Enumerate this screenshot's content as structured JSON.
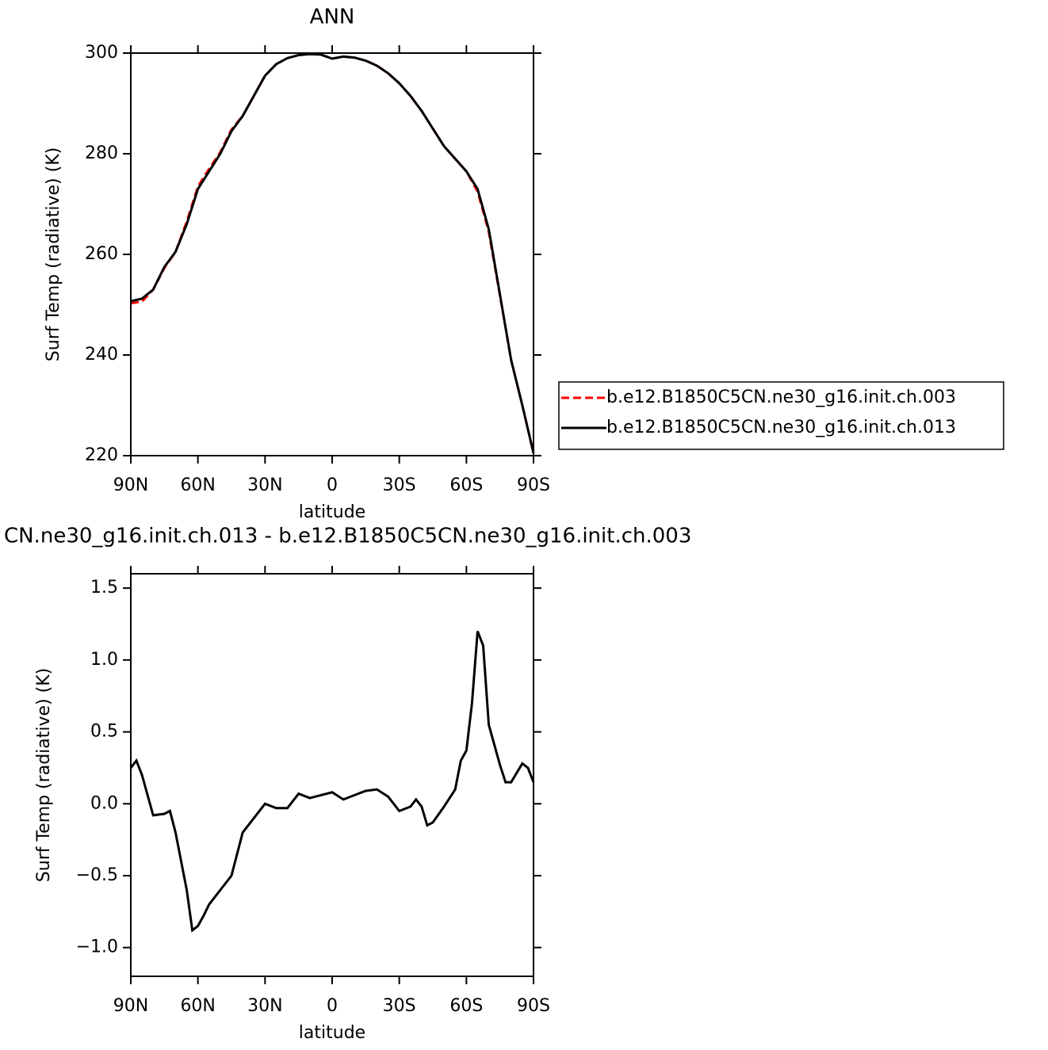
{
  "chart_data": [
    {
      "type": "line",
      "title": "ANN",
      "xlabel": "latitude",
      "ylabel": "Surf Temp (radiative) (K)",
      "x": [
        90,
        85,
        80,
        75,
        70,
        65,
        60,
        55,
        50,
        45,
        40,
        35,
        30,
        25,
        20,
        15,
        10,
        5,
        0,
        -5,
        -10,
        -15,
        -20,
        -25,
        -30,
        -35,
        -40,
        -45,
        -50,
        -55,
        -60,
        -65,
        -70,
        -75,
        -80,
        -85,
        -90
      ],
      "series": [
        {
          "name": "b.e12.B1850C5CN.ne30_g16.init.ch.003",
          "color": "#ff0000",
          "dash": "dashed",
          "values": [
            250.3,
            250.6,
            253,
            257.3,
            260.5,
            266.5,
            273.5,
            277,
            280.3,
            284.8,
            287.5,
            291.5,
            295.5,
            297.8,
            299,
            299.6,
            299.8,
            299.7,
            298.9,
            299.3,
            299.1,
            298.5,
            297.5,
            296,
            294,
            291.5,
            288.5,
            285,
            281.5,
            279,
            276.5,
            272.5,
            264.5,
            251.8,
            239,
            230,
            220.5
          ]
        },
        {
          "name": "b.e12.B1850C5CN.ne30_g16.init.ch.013",
          "color": "#000000",
          "dash": "solid",
          "values": [
            250.7,
            251.2,
            253,
            257.5,
            260.5,
            266,
            273,
            276.5,
            280,
            284.5,
            287.5,
            291.5,
            295.5,
            297.8,
            299,
            299.6,
            299.8,
            299.7,
            298.9,
            299.3,
            299.1,
            298.5,
            297.5,
            296,
            294,
            291.5,
            288.5,
            285,
            281.5,
            279,
            276.5,
            273,
            265,
            252,
            239,
            230,
            220.5
          ]
        }
      ],
      "xlim": [
        90,
        -90
      ],
      "xticks": [
        {
          "value": 90,
          "label": "90N"
        },
        {
          "value": 60,
          "label": "60N"
        },
        {
          "value": 30,
          "label": "30N"
        },
        0,
        {
          "value": -30,
          "label": "30S"
        },
        {
          "value": -60,
          "label": "60S"
        },
        {
          "value": -90,
          "label": "90S"
        }
      ],
      "ylim": [
        220,
        300
      ],
      "yticks": [
        220,
        240,
        260,
        280,
        300
      ],
      "legend": "outside right"
    },
    {
      "type": "line",
      "title": "CN.ne30_g16.init.ch.013 - b.e12.B1850C5CN.ne30_g16.init.ch.003",
      "xlabel": "latitude",
      "ylabel": "Surf Temp (radiative) (K)",
      "x": [
        90,
        87.5,
        85,
        80,
        75,
        72.5,
        70,
        65,
        62.5,
        60,
        57.5,
        55,
        50,
        45,
        40,
        35,
        30,
        25,
        20,
        15,
        10,
        5,
        0,
        -5,
        -10,
        -15,
        -20,
        -25,
        -30,
        -35,
        -37.5,
        -40,
        -42.5,
        -45,
        -50,
        -55,
        -57.5,
        -60,
        -62.5,
        -65,
        -67.5,
        -70,
        -75,
        -77.5,
        -80,
        -85,
        -87.5,
        -90
      ],
      "series": [
        {
          "color": "#000000",
          "dash": "solid",
          "values": [
            0.25,
            0.3,
            0.2,
            -0.08,
            -0.07,
            -0.05,
            -0.2,
            -0.6,
            -0.88,
            -0.85,
            -0.78,
            -0.7,
            -0.6,
            -0.5,
            -0.2,
            -0.1,
            0,
            -0.03,
            -0.03,
            0.07,
            0.04,
            0.06,
            0.08,
            0.03,
            0.06,
            0.09,
            0.1,
            0.05,
            -0.05,
            -0.02,
            0.03,
            -0.02,
            -0.15,
            -0.13,
            -0.02,
            0.1,
            0.3,
            0.37,
            0.7,
            1.2,
            1.1,
            0.55,
            0.27,
            0.15,
            0.15,
            0.28,
            0.25,
            0.15
          ]
        }
      ],
      "xlim": [
        90,
        -90
      ],
      "xticks": [
        {
          "value": 90,
          "label": "90N"
        },
        {
          "value": 60,
          "label": "60N"
        },
        {
          "value": 30,
          "label": "30N"
        },
        0,
        {
          "value": -30,
          "label": "30S"
        },
        {
          "value": -60,
          "label": "60S"
        },
        {
          "value": -90,
          "label": "90S"
        }
      ],
      "ylim": [
        -1.2,
        1.6
      ],
      "yticks": [
        {
          "value": -1.0,
          "label": "−1.0"
        },
        {
          "value": -0.5,
          "label": "−0.5"
        },
        {
          "value": 0,
          "label": "0.0"
        },
        0.5,
        {
          "value": 1.0,
          "label": "1.0"
        },
        1.5
      ]
    }
  ]
}
